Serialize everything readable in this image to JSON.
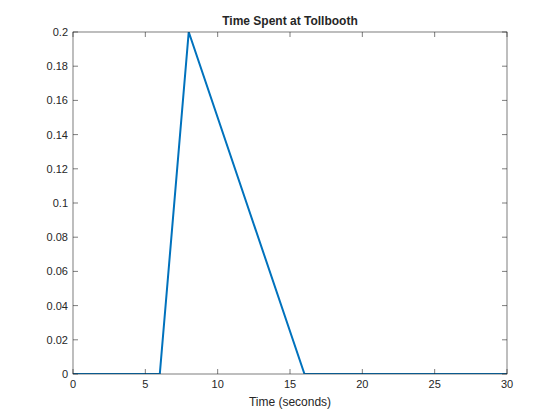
{
  "chart_data": {
    "type": "line",
    "title": "Time Spent at Tollbooth",
    "x_label": "Time (seconds)",
    "x": [
      0,
      6,
      8,
      16,
      30
    ],
    "values": [
      0,
      0,
      0.2,
      0,
      0
    ],
    "color": "#0072bd",
    "xlim": [
      0,
      30
    ],
    "xticks": [
      0,
      5,
      10,
      15,
      20,
      25,
      30
    ],
    "ylim": [
      0,
      0.2
    ],
    "yticks": [
      0,
      0.02,
      0.04,
      0.06,
      0.08,
      0.1,
      0.12,
      0.14,
      0.16,
      0.18,
      0.2
    ],
    "grid": false
  }
}
